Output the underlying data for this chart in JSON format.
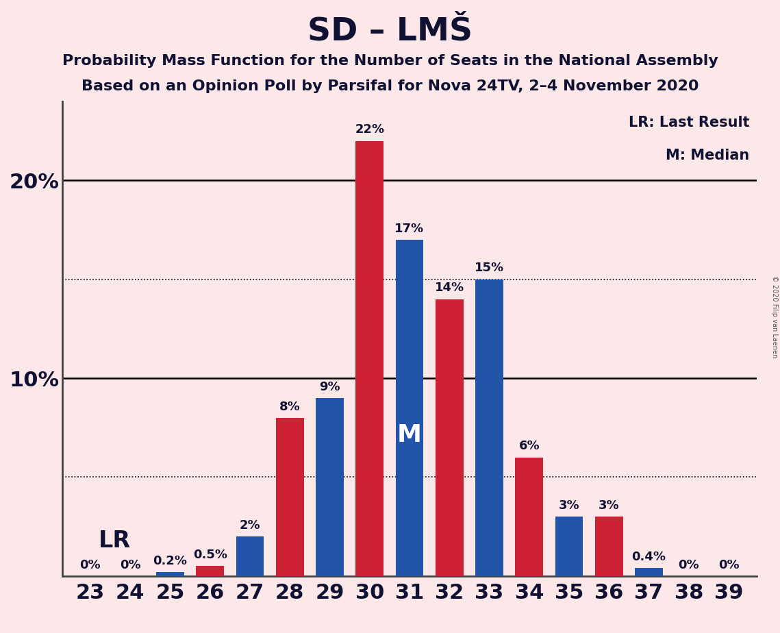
{
  "title": "SD – LMŠ",
  "subtitle1": "Probability Mass Function for the Number of Seats in the National Assembly",
  "subtitle2": "Based on an Opinion Poll by Parsifal for Nova 24TV, 2–4 November 2020",
  "copyright": "© 2020 Filip van Laenen",
  "seats": [
    23,
    24,
    25,
    26,
    27,
    28,
    29,
    30,
    31,
    32,
    33,
    34,
    35,
    36,
    37,
    38,
    39
  ],
  "values": [
    0.0,
    0.0,
    0.2,
    0.5,
    2.0,
    8.0,
    9.0,
    22.0,
    17.0,
    14.0,
    15.0,
    6.0,
    3.0,
    3.0,
    0.4,
    0.0,
    0.0
  ],
  "bar_colors": [
    "#2255aa",
    "#2255aa",
    "#2255aa",
    "#cc2233",
    "#2255aa",
    "#cc2233",
    "#2255aa",
    "#cc2233",
    "#2255aa",
    "#cc2233",
    "#2255aa",
    "#cc2233",
    "#2255aa",
    "#cc2233",
    "#2255aa",
    "#2255aa",
    "#2255aa"
  ],
  "label_colors": [
    "#111133",
    "#111133",
    "#111133",
    "#111133",
    "#111133",
    "#111133",
    "#111133",
    "#111133",
    "#111133",
    "#111133",
    "#111133",
    "#111133",
    "#111133",
    "#111133",
    "#111133",
    "#111133",
    "#111133"
  ],
  "blue_color": "#2255aa",
  "red_color": "#cc2233",
  "background_color": "#fce8e8",
  "ylim": [
    0,
    24
  ],
  "bar_width": 0.7,
  "lr_seat": 26,
  "median_seat": 31,
  "legend_lr": "LR: Last Result",
  "legend_m": "M: Median",
  "lr_label": "LR",
  "median_label": "M",
  "bar_label_fontsize": 13,
  "title_fontsize": 34,
  "subtitle_fontsize": 16,
  "axis_label_fontsize": 22,
  "dotted_lines": [
    5.0,
    15.0
  ],
  "solid_lines": [
    10.0,
    20.0
  ]
}
